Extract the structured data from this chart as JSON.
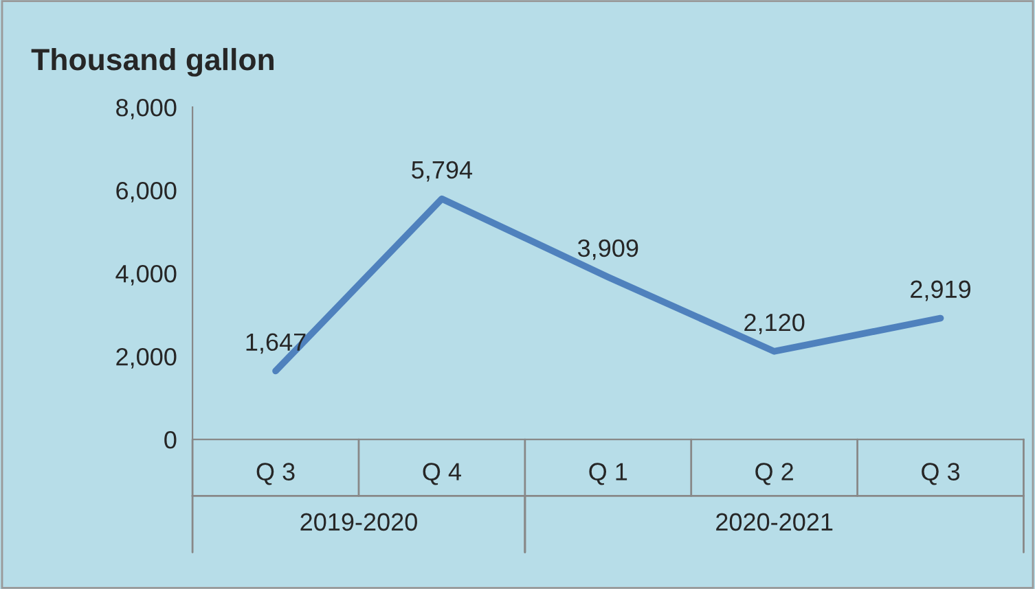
{
  "chart_data": {
    "type": "line",
    "ylabel": "Thousand gallon",
    "categories": [
      "Q 3",
      "Q 4",
      "Q 1",
      "Q 2",
      "Q 3"
    ],
    "series": [
      {
        "color": "#4f81bd",
        "values": [
          1647,
          5794,
          3909,
          2120,
          2919
        ],
        "value_labels": [
          "1,647",
          "5,794",
          "3,909",
          "2,120",
          "2,919"
        ]
      }
    ],
    "ylim": [
      0,
      8000
    ],
    "yticks": [
      0,
      {
        "value": 2000,
        "label": "2,000"
      },
      {
        "value": 4000,
        "label": "4,000"
      },
      {
        "value": 6000,
        "label": "6,000"
      },
      {
        "value": 8000,
        "label": "8,000"
      }
    ],
    "grid": false,
    "marker": "none",
    "line_style": "solid",
    "annotations": [
      "2019-2020",
      "2020-2021"
    ]
  }
}
